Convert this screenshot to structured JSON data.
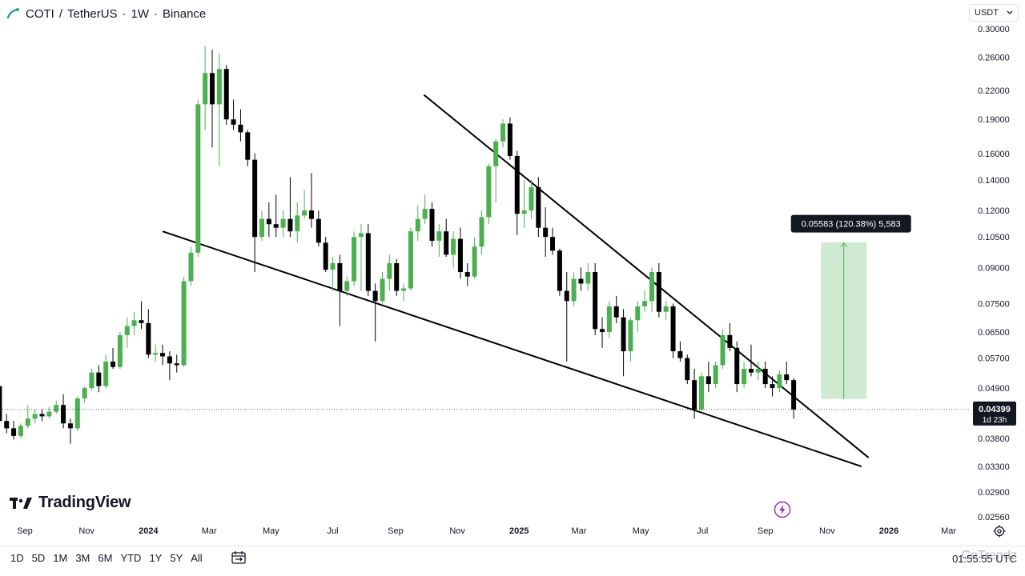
{
  "header": {
    "symbol": "COTI",
    "separator1": "/",
    "quote": "TetherUS",
    "interval": "1W",
    "exchange": "Binance",
    "dot": "·"
  },
  "currency_select": {
    "value": "USDT"
  },
  "branding": {
    "logo_text": "TradingView"
  },
  "range_buttons": [
    "1D",
    "5D",
    "1M",
    "3M",
    "6M",
    "YTD",
    "1Y",
    "5Y",
    "All"
  ],
  "clock": "01:55:55 UTC",
  "watermark": "CoTrendz",
  "measure_label": "0.05583 (120.38%) 5,583",
  "last_price": {
    "value": "0.04399",
    "countdown": "1d 23h"
  },
  "colors": {
    "up": "#4caf50",
    "down": "#000000",
    "measure_fill": "#c8e6c9",
    "measure_stroke": "#4caf50",
    "trendline": "#000000",
    "axis_text": "#131722"
  },
  "icons": {
    "header_logo": "tradingview-logo-icon",
    "select_chevron": "chevron-down-icon",
    "date_range": "calendar-range-icon",
    "settings": "gear-icon",
    "bolt": "lightning-icon"
  },
  "chart_data": {
    "type": "candlestick",
    "title": "COTI / TetherUS · 1W · Binance",
    "y_scale": "log",
    "ylim": [
      0.0256,
      0.3
    ],
    "y_ticks": [
      "0.30000",
      "0.26000",
      "0.22000",
      "0.19000",
      "0.16000",
      "0.14000",
      "0.12000",
      "0.10500",
      "0.09000",
      "0.07500",
      "0.06500",
      "0.05700",
      "0.04900",
      "0.03800",
      "0.03300",
      "0.02900",
      "0.02560"
    ],
    "x_ticks": [
      "Sep",
      "Nov",
      "2024",
      "Mar",
      "May",
      "Jul",
      "Sep",
      "Nov",
      "2025",
      "Mar",
      "May",
      "Jul",
      "Sep",
      "Nov",
      "2026",
      "Mar"
    ],
    "x_tick_dates": [
      "2023-09-01",
      "2023-11-01",
      "2024-01-01",
      "2024-03-01",
      "2024-05-01",
      "2024-07-01",
      "2024-09-01",
      "2024-11-01",
      "2025-01-01",
      "2025-03-01",
      "2025-05-01",
      "2025-07-01",
      "2025-09-01",
      "2025-11-01",
      "2026-01-01",
      "2026-03-01"
    ],
    "candles": [
      {
        "date": "2023-08-07",
        "o": 0.0495,
        "h": 0.05,
        "l": 0.0405,
        "c": 0.0415
      },
      {
        "date": "2023-08-14",
        "o": 0.0415,
        "h": 0.043,
        "l": 0.039,
        "c": 0.04
      },
      {
        "date": "2023-08-21",
        "o": 0.04,
        "h": 0.0415,
        "l": 0.0378,
        "c": 0.0385
      },
      {
        "date": "2023-08-28",
        "o": 0.0385,
        "h": 0.041,
        "l": 0.038,
        "c": 0.0405
      },
      {
        "date": "2023-09-04",
        "o": 0.0405,
        "h": 0.045,
        "l": 0.04,
        "c": 0.042
      },
      {
        "date": "2023-09-11",
        "o": 0.042,
        "h": 0.044,
        "l": 0.041,
        "c": 0.043
      },
      {
        "date": "2023-09-18",
        "o": 0.043,
        "h": 0.044,
        "l": 0.0415,
        "c": 0.0425
      },
      {
        "date": "2023-09-25",
        "o": 0.0425,
        "h": 0.0445,
        "l": 0.042,
        "c": 0.0435
      },
      {
        "date": "2023-10-02",
        "o": 0.0435,
        "h": 0.046,
        "l": 0.043,
        "c": 0.045
      },
      {
        "date": "2023-10-09",
        "o": 0.045,
        "h": 0.0475,
        "l": 0.04,
        "c": 0.041
      },
      {
        "date": "2023-10-16",
        "o": 0.041,
        "h": 0.042,
        "l": 0.037,
        "c": 0.04
      },
      {
        "date": "2023-10-23",
        "o": 0.04,
        "h": 0.047,
        "l": 0.0395,
        "c": 0.0465
      },
      {
        "date": "2023-10-30",
        "o": 0.0465,
        "h": 0.0495,
        "l": 0.0455,
        "c": 0.049
      },
      {
        "date": "2023-11-06",
        "o": 0.049,
        "h": 0.054,
        "l": 0.0485,
        "c": 0.053
      },
      {
        "date": "2023-11-13",
        "o": 0.053,
        "h": 0.055,
        "l": 0.048,
        "c": 0.0495
      },
      {
        "date": "2023-11-20",
        "o": 0.0495,
        "h": 0.058,
        "l": 0.049,
        "c": 0.056
      },
      {
        "date": "2023-11-27",
        "o": 0.056,
        "h": 0.06,
        "l": 0.054,
        "c": 0.0545
      },
      {
        "date": "2023-12-04",
        "o": 0.0545,
        "h": 0.065,
        "l": 0.054,
        "c": 0.064
      },
      {
        "date": "2023-12-11",
        "o": 0.064,
        "h": 0.07,
        "l": 0.06,
        "c": 0.067
      },
      {
        "date": "2023-12-18",
        "o": 0.067,
        "h": 0.072,
        "l": 0.064,
        "c": 0.069
      },
      {
        "date": "2023-12-25",
        "o": 0.069,
        "h": 0.076,
        "l": 0.066,
        "c": 0.068
      },
      {
        "date": "2024-01-01",
        "o": 0.068,
        "h": 0.073,
        "l": 0.057,
        "c": 0.058
      },
      {
        "date": "2024-01-08",
        "o": 0.058,
        "h": 0.061,
        "l": 0.056,
        "c": 0.0585
      },
      {
        "date": "2024-01-15",
        "o": 0.0585,
        "h": 0.061,
        "l": 0.055,
        "c": 0.0575
      },
      {
        "date": "2024-01-22",
        "o": 0.0575,
        "h": 0.059,
        "l": 0.051,
        "c": 0.0555
      },
      {
        "date": "2024-01-29",
        "o": 0.0555,
        "h": 0.058,
        "l": 0.053,
        "c": 0.055
      },
      {
        "date": "2024-02-05",
        "o": 0.055,
        "h": 0.086,
        "l": 0.0545,
        "c": 0.084
      },
      {
        "date": "2024-02-12",
        "o": 0.084,
        "h": 0.1,
        "l": 0.082,
        "c": 0.097
      },
      {
        "date": "2024-02-19",
        "o": 0.097,
        "h": 0.21,
        "l": 0.095,
        "c": 0.205
      },
      {
        "date": "2024-02-26",
        "o": 0.205,
        "h": 0.275,
        "l": 0.18,
        "c": 0.24
      },
      {
        "date": "2024-03-04",
        "o": 0.24,
        "h": 0.27,
        "l": 0.165,
        "c": 0.205
      },
      {
        "date": "2024-03-11",
        "o": 0.205,
        "h": 0.265,
        "l": 0.15,
        "c": 0.245
      },
      {
        "date": "2024-03-18",
        "o": 0.245,
        "h": 0.25,
        "l": 0.185,
        "c": 0.19
      },
      {
        "date": "2024-03-25",
        "o": 0.19,
        "h": 0.21,
        "l": 0.18,
        "c": 0.185
      },
      {
        "date": "2024-04-01",
        "o": 0.185,
        "h": 0.2,
        "l": 0.17,
        "c": 0.178
      },
      {
        "date": "2024-04-08",
        "o": 0.178,
        "h": 0.18,
        "l": 0.15,
        "c": 0.155
      },
      {
        "date": "2024-04-15",
        "o": 0.155,
        "h": 0.16,
        "l": 0.088,
        "c": 0.105
      },
      {
        "date": "2024-04-22",
        "o": 0.105,
        "h": 0.12,
        "l": 0.103,
        "c": 0.115
      },
      {
        "date": "2024-04-29",
        "o": 0.115,
        "h": 0.125,
        "l": 0.105,
        "c": 0.112
      },
      {
        "date": "2024-05-06",
        "o": 0.112,
        "h": 0.13,
        "l": 0.105,
        "c": 0.11
      },
      {
        "date": "2024-05-13",
        "o": 0.11,
        "h": 0.12,
        "l": 0.105,
        "c": 0.115
      },
      {
        "date": "2024-05-20",
        "o": 0.115,
        "h": 0.142,
        "l": 0.105,
        "c": 0.108
      },
      {
        "date": "2024-05-27",
        "o": 0.108,
        "h": 0.125,
        "l": 0.102,
        "c": 0.117
      },
      {
        "date": "2024-06-03",
        "o": 0.117,
        "h": 0.133,
        "l": 0.115,
        "c": 0.12
      },
      {
        "date": "2024-06-10",
        "o": 0.12,
        "h": 0.145,
        "l": 0.11,
        "c": 0.115
      },
      {
        "date": "2024-06-17",
        "o": 0.115,
        "h": 0.12,
        "l": 0.1,
        "c": 0.102
      },
      {
        "date": "2024-06-24",
        "o": 0.102,
        "h": 0.105,
        "l": 0.088,
        "c": 0.089
      },
      {
        "date": "2024-07-01",
        "o": 0.089,
        "h": 0.095,
        "l": 0.08,
        "c": 0.092
      },
      {
        "date": "2024-07-08",
        "o": 0.092,
        "h": 0.096,
        "l": 0.067,
        "c": 0.08
      },
      {
        "date": "2024-07-15",
        "o": 0.08,
        "h": 0.086,
        "l": 0.078,
        "c": 0.084
      },
      {
        "date": "2024-07-22",
        "o": 0.084,
        "h": 0.108,
        "l": 0.082,
        "c": 0.105
      },
      {
        "date": "2024-07-29",
        "o": 0.105,
        "h": 0.112,
        "l": 0.08,
        "c": 0.107
      },
      {
        "date": "2024-08-05",
        "o": 0.107,
        "h": 0.112,
        "l": 0.078,
        "c": 0.08
      },
      {
        "date": "2024-08-12",
        "o": 0.08,
        "h": 0.083,
        "l": 0.062,
        "c": 0.076
      },
      {
        "date": "2024-08-19",
        "o": 0.076,
        "h": 0.088,
        "l": 0.075,
        "c": 0.085
      },
      {
        "date": "2024-08-26",
        "o": 0.085,
        "h": 0.096,
        "l": 0.08,
        "c": 0.092
      },
      {
        "date": "2024-09-02",
        "o": 0.092,
        "h": 0.094,
        "l": 0.078,
        "c": 0.08
      },
      {
        "date": "2024-09-09",
        "o": 0.08,
        "h": 0.083,
        "l": 0.076,
        "c": 0.081
      },
      {
        "date": "2024-09-16",
        "o": 0.081,
        "h": 0.11,
        "l": 0.08,
        "c": 0.108
      },
      {
        "date": "2024-09-23",
        "o": 0.108,
        "h": 0.123,
        "l": 0.103,
        "c": 0.115
      },
      {
        "date": "2024-09-30",
        "o": 0.115,
        "h": 0.13,
        "l": 0.112,
        "c": 0.121
      },
      {
        "date": "2024-10-07",
        "o": 0.121,
        "h": 0.125,
        "l": 0.1,
        "c": 0.103
      },
      {
        "date": "2024-10-14",
        "o": 0.103,
        "h": 0.112,
        "l": 0.095,
        "c": 0.108
      },
      {
        "date": "2024-10-21",
        "o": 0.108,
        "h": 0.115,
        "l": 0.095,
        "c": 0.096
      },
      {
        "date": "2024-10-28",
        "o": 0.096,
        "h": 0.108,
        "l": 0.09,
        "c": 0.104
      },
      {
        "date": "2024-11-04",
        "o": 0.104,
        "h": 0.11,
        "l": 0.085,
        "c": 0.088
      },
      {
        "date": "2024-11-11",
        "o": 0.088,
        "h": 0.092,
        "l": 0.082,
        "c": 0.086
      },
      {
        "date": "2024-11-18",
        "o": 0.086,
        "h": 0.105,
        "l": 0.085,
        "c": 0.1
      },
      {
        "date": "2024-11-25",
        "o": 0.1,
        "h": 0.12,
        "l": 0.096,
        "c": 0.116
      },
      {
        "date": "2024-12-02",
        "o": 0.116,
        "h": 0.152,
        "l": 0.112,
        "c": 0.15
      },
      {
        "date": "2024-12-09",
        "o": 0.15,
        "h": 0.172,
        "l": 0.125,
        "c": 0.17
      },
      {
        "date": "2024-12-16",
        "o": 0.17,
        "h": 0.19,
        "l": 0.165,
        "c": 0.186
      },
      {
        "date": "2024-12-23",
        "o": 0.186,
        "h": 0.192,
        "l": 0.155,
        "c": 0.158
      },
      {
        "date": "2024-12-30",
        "o": 0.158,
        "h": 0.162,
        "l": 0.106,
        "c": 0.118
      },
      {
        "date": "2025-01-06",
        "o": 0.118,
        "h": 0.14,
        "l": 0.11,
        "c": 0.12
      },
      {
        "date": "2025-01-13",
        "o": 0.12,
        "h": 0.14,
        "l": 0.115,
        "c": 0.135
      },
      {
        "date": "2025-01-20",
        "o": 0.135,
        "h": 0.142,
        "l": 0.105,
        "c": 0.11
      },
      {
        "date": "2025-01-27",
        "o": 0.11,
        "h": 0.122,
        "l": 0.095,
        "c": 0.105
      },
      {
        "date": "2025-02-03",
        "o": 0.105,
        "h": 0.11,
        "l": 0.096,
        "c": 0.098
      },
      {
        "date": "2025-02-10",
        "o": 0.098,
        "h": 0.099,
        "l": 0.078,
        "c": 0.08
      },
      {
        "date": "2025-02-17",
        "o": 0.08,
        "h": 0.088,
        "l": 0.056,
        "c": 0.076
      },
      {
        "date": "2025-02-24",
        "o": 0.076,
        "h": 0.088,
        "l": 0.074,
        "c": 0.085
      },
      {
        "date": "2025-03-03",
        "o": 0.085,
        "h": 0.09,
        "l": 0.08,
        "c": 0.083
      },
      {
        "date": "2025-03-10",
        "o": 0.083,
        "h": 0.092,
        "l": 0.08,
        "c": 0.088
      },
      {
        "date": "2025-03-17",
        "o": 0.088,
        "h": 0.092,
        "l": 0.064,
        "c": 0.066
      },
      {
        "date": "2025-03-24",
        "o": 0.066,
        "h": 0.07,
        "l": 0.06,
        "c": 0.065
      },
      {
        "date": "2025-03-31",
        "o": 0.065,
        "h": 0.076,
        "l": 0.063,
        "c": 0.074
      },
      {
        "date": "2025-04-07",
        "o": 0.074,
        "h": 0.078,
        "l": 0.068,
        "c": 0.07
      },
      {
        "date": "2025-04-14",
        "o": 0.07,
        "h": 0.073,
        "l": 0.052,
        "c": 0.059
      },
      {
        "date": "2025-04-21",
        "o": 0.059,
        "h": 0.07,
        "l": 0.056,
        "c": 0.069
      },
      {
        "date": "2025-04-28",
        "o": 0.069,
        "h": 0.076,
        "l": 0.065,
        "c": 0.074
      },
      {
        "date": "2025-05-05",
        "o": 0.074,
        "h": 0.08,
        "l": 0.072,
        "c": 0.076
      },
      {
        "date": "2025-05-12",
        "o": 0.076,
        "h": 0.09,
        "l": 0.072,
        "c": 0.088
      },
      {
        "date": "2025-05-19",
        "o": 0.088,
        "h": 0.092,
        "l": 0.07,
        "c": 0.072
      },
      {
        "date": "2025-05-26",
        "o": 0.072,
        "h": 0.076,
        "l": 0.069,
        "c": 0.074
      },
      {
        "date": "2025-06-02",
        "o": 0.074,
        "h": 0.075,
        "l": 0.057,
        "c": 0.059
      },
      {
        "date": "2025-06-09",
        "o": 0.059,
        "h": 0.062,
        "l": 0.056,
        "c": 0.057
      },
      {
        "date": "2025-06-16",
        "o": 0.057,
        "h": 0.058,
        "l": 0.05,
        "c": 0.051
      },
      {
        "date": "2025-06-23",
        "o": 0.051,
        "h": 0.054,
        "l": 0.042,
        "c": 0.044
      },
      {
        "date": "2025-06-30",
        "o": 0.044,
        "h": 0.053,
        "l": 0.0435,
        "c": 0.052
      },
      {
        "date": "2025-07-07",
        "o": 0.052,
        "h": 0.056,
        "l": 0.048,
        "c": 0.05
      },
      {
        "date": "2025-07-14",
        "o": 0.05,
        "h": 0.056,
        "l": 0.049,
        "c": 0.055
      },
      {
        "date": "2025-07-21",
        "o": 0.055,
        "h": 0.066,
        "l": 0.054,
        "c": 0.064
      },
      {
        "date": "2025-07-28",
        "o": 0.064,
        "h": 0.068,
        "l": 0.059,
        "c": 0.06
      },
      {
        "date": "2025-08-04",
        "o": 0.06,
        "h": 0.062,
        "l": 0.048,
        "c": 0.05
      },
      {
        "date": "2025-08-11",
        "o": 0.05,
        "h": 0.056,
        "l": 0.049,
        "c": 0.054
      },
      {
        "date": "2025-08-18",
        "o": 0.054,
        "h": 0.061,
        "l": 0.052,
        "c": 0.053
      },
      {
        "date": "2025-08-25",
        "o": 0.053,
        "h": 0.056,
        "l": 0.051,
        "c": 0.054
      },
      {
        "date": "2025-09-01",
        "o": 0.054,
        "h": 0.056,
        "l": 0.049,
        "c": 0.05
      },
      {
        "date": "2025-09-08",
        "o": 0.05,
        "h": 0.052,
        "l": 0.047,
        "c": 0.049
      },
      {
        "date": "2025-09-15",
        "o": 0.049,
        "h": 0.0535,
        "l": 0.048,
        "c": 0.0525
      },
      {
        "date": "2025-09-22",
        "o": 0.0525,
        "h": 0.056,
        "l": 0.05,
        "c": 0.051
      },
      {
        "date": "2025-09-29",
        "o": 0.051,
        "h": 0.0515,
        "l": 0.042,
        "c": 0.04399
      }
    ],
    "trendlines": [
      {
        "name": "upper",
        "from": {
          "date": "2024-09-29",
          "price": 0.215
        },
        "to": {
          "date": "2025-12-12",
          "price": 0.0345
        }
      },
      {
        "name": "lower",
        "from": {
          "date": "2024-01-15",
          "price": 0.108
        },
        "to": {
          "date": "2025-12-05",
          "price": 0.033
        }
      }
    ],
    "measure_range": {
      "from_date": "2025-10-26",
      "to_date": "2025-12-10",
      "low": 0.0464,
      "high": 0.1023
    },
    "last_price_value": 0.04399
  }
}
